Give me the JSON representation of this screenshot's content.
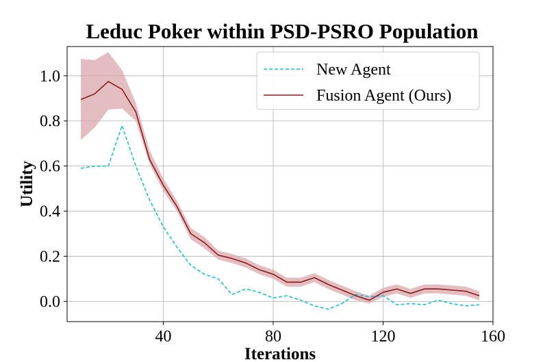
{
  "chart_data": {
    "type": "line",
    "title": "Leduc Poker within PSD-PSRO Population",
    "xlabel": "Iterations",
    "ylabel": "Utility",
    "xlim": [
      5,
      160
    ],
    "ylim": [
      -0.09,
      1.13
    ],
    "xticks": [
      40,
      80,
      120,
      160
    ],
    "yticks": [
      0.0,
      0.2,
      0.4,
      0.6,
      0.8,
      1.0
    ],
    "xtick_labels": [
      "40",
      "80",
      "120",
      "160"
    ],
    "ytick_labels": [
      "0.0",
      "0.2",
      "0.4",
      "0.6",
      "0.8",
      "1.0"
    ],
    "grid": true,
    "legend_position": "top-right",
    "series": [
      {
        "name": "New Agent",
        "color": "#17becf",
        "style": "dashed",
        "x": [
          10,
          15,
          20,
          25,
          30,
          35,
          40,
          45,
          50,
          55,
          60,
          65,
          70,
          75,
          80,
          85,
          90,
          95,
          100,
          105,
          110,
          115,
          120,
          125,
          130,
          135,
          140,
          145,
          150,
          155
        ],
        "y": [
          0.59,
          0.6,
          0.6,
          0.78,
          0.6,
          0.45,
          0.33,
          0.24,
          0.16,
          0.12,
          0.1,
          0.03,
          0.055,
          0.04,
          0.015,
          0.025,
          0.005,
          -0.02,
          -0.035,
          -0.01,
          0.03,
          0.02,
          0.025,
          -0.015,
          -0.01,
          -0.015,
          0.005,
          -0.01,
          -0.02,
          -0.015
        ]
      },
      {
        "name": "Fusion Agent (Ours)",
        "color": "#8b1a1a",
        "band_color": "#d9a7aa",
        "style": "solid",
        "x": [
          10,
          15,
          20,
          25,
          30,
          35,
          40,
          45,
          50,
          55,
          60,
          65,
          70,
          75,
          80,
          85,
          90,
          95,
          100,
          105,
          110,
          115,
          120,
          125,
          130,
          135,
          140,
          145,
          150,
          155
        ],
        "y": [
          0.895,
          0.92,
          0.975,
          0.94,
          0.84,
          0.63,
          0.515,
          0.42,
          0.3,
          0.26,
          0.205,
          0.19,
          0.17,
          0.14,
          0.12,
          0.085,
          0.085,
          0.105,
          0.075,
          0.05,
          0.025,
          0.005,
          0.04,
          0.055,
          0.035,
          0.055,
          0.055,
          0.05,
          0.045,
          0.025
        ],
        "lower": [
          0.715,
          0.77,
          0.85,
          0.855,
          0.8,
          0.61,
          0.49,
          0.4,
          0.275,
          0.235,
          0.185,
          0.17,
          0.15,
          0.12,
          0.1,
          0.065,
          0.065,
          0.085,
          0.055,
          0.03,
          0.005,
          -0.01,
          0.02,
          0.035,
          0.015,
          0.035,
          0.035,
          0.03,
          0.025,
          0.005
        ],
        "upper": [
          1.075,
          1.07,
          1.105,
          1.025,
          0.88,
          0.67,
          0.545,
          0.445,
          0.325,
          0.285,
          0.225,
          0.21,
          0.19,
          0.16,
          0.14,
          0.105,
          0.105,
          0.125,
          0.095,
          0.07,
          0.045,
          0.025,
          0.06,
          0.075,
          0.055,
          0.075,
          0.075,
          0.07,
          0.065,
          0.045
        ]
      }
    ]
  }
}
